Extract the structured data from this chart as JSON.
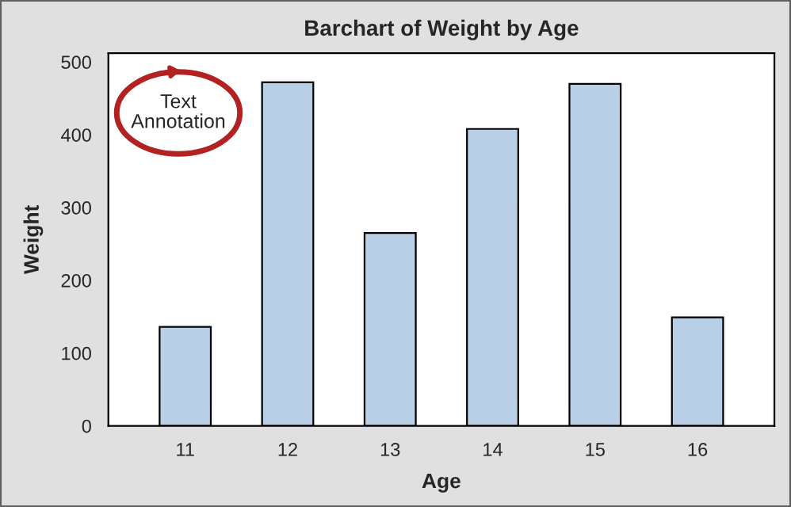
{
  "chart_data": {
    "type": "bar",
    "title": "Barchart of Weight by Age",
    "xlabel": "Age",
    "ylabel": "Weight",
    "categories": [
      "11",
      "12",
      "13",
      "14",
      "15",
      "16"
    ],
    "values": [
      136,
      472,
      265,
      408,
      470,
      149
    ],
    "color": "#b9cfe6",
    "ylim": [
      0,
      512
    ],
    "yticks": [
      0,
      100,
      200,
      300,
      400,
      500
    ],
    "grid": false,
    "legend": false,
    "annotations": [
      "Text\nAnnotation"
    ]
  }
}
